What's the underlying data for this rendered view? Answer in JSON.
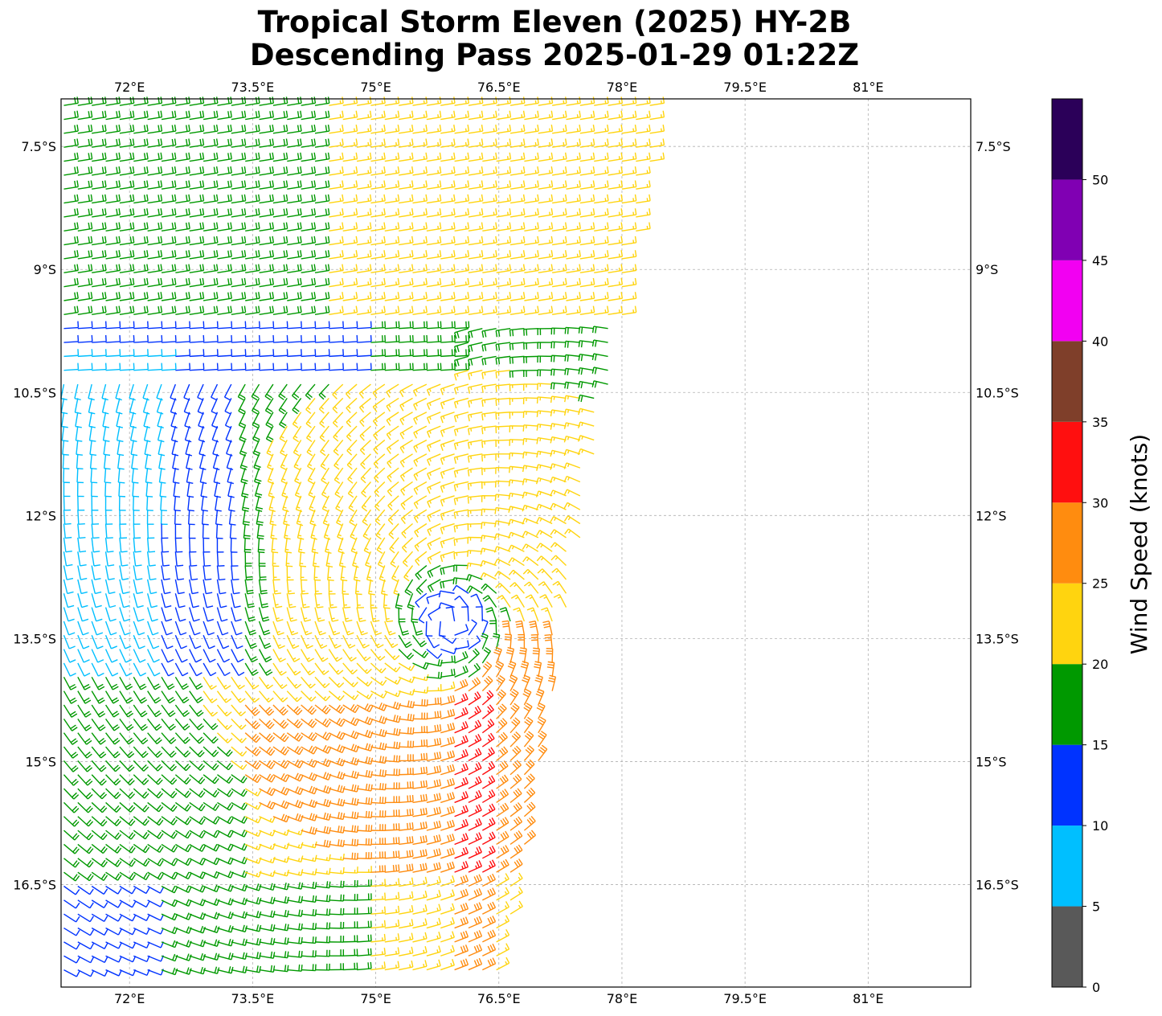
{
  "title": {
    "line1": "Tropical Storm Eleven (2025) HY-2B",
    "line2": "Descending Pass 2025-01-29 01:22Z"
  },
  "map": {
    "lon_range": [
      71.166,
      82.25
    ],
    "lat_range": [
      -6.92,
      -17.75
    ],
    "lon_ticks": [
      {
        "value": 72.0,
        "label": "72°E"
      },
      {
        "value": 73.5,
        "label": "73.5°E"
      },
      {
        "value": 75.0,
        "label": "75°E"
      },
      {
        "value": 76.5,
        "label": "76.5°E"
      },
      {
        "value": 78.0,
        "label": "78°E"
      },
      {
        "value": 79.5,
        "label": "79.5°E"
      },
      {
        "value": 81.0,
        "label": "81°E"
      }
    ],
    "lat_ticks": [
      {
        "value": -7.5,
        "label": "7.5°S"
      },
      {
        "value": -9.0,
        "label": "9°S"
      },
      {
        "value": -10.5,
        "label": "10.5°S"
      },
      {
        "value": -12.0,
        "label": "12°S"
      },
      {
        "value": -13.5,
        "label": "13.5°S"
      },
      {
        "value": -15.0,
        "label": "15°S"
      },
      {
        "value": -16.5,
        "label": "16.5°S"
      }
    ],
    "gridlines": true,
    "swath_edge": {
      "north": [
        78.45,
        -7.1
      ],
      "south": [
        76.5,
        -17.75
      ]
    },
    "storm_center": [
      75.9,
      -13.3
    ]
  },
  "colorbar": {
    "label": "Wind Speed (knots)",
    "ticks": [
      0,
      5,
      10,
      15,
      20,
      25,
      30,
      35,
      40,
      45,
      50
    ],
    "max": 55,
    "bins": [
      {
        "min": 0,
        "max": 5,
        "color": "#595959"
      },
      {
        "min": 5,
        "max": 10,
        "color": "#00bfff"
      },
      {
        "min": 10,
        "max": 15,
        "color": "#0033ff"
      },
      {
        "min": 15,
        "max": 20,
        "color": "#009900"
      },
      {
        "min": 20,
        "max": 25,
        "color": "#ffd40f"
      },
      {
        "min": 25,
        "max": 30,
        "color": "#ff8c0f"
      },
      {
        "min": 30,
        "max": 35,
        "color": "#ff0f0f"
      },
      {
        "min": 35,
        "max": 40,
        "color": "#7f3f2a"
      },
      {
        "min": 40,
        "max": 45,
        "color": "#f200f2"
      },
      {
        "min": 45,
        "max": 50,
        "color": "#8000b3"
      },
      {
        "min": 50,
        "max": 55,
        "color": "#2b0059"
      }
    ]
  }
}
